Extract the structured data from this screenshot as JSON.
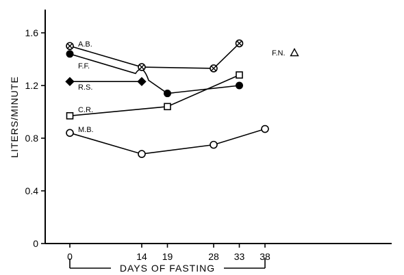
{
  "chart_data": {
    "type": "line",
    "title": "",
    "xlabel": "DAYS OF FASTING",
    "ylabel": "LITERS/MINUTE",
    "x_ticks": [
      0,
      14,
      19,
      28,
      33,
      38
    ],
    "y_ticks": [
      "0",
      "0.4",
      "0.8",
      "1.2",
      "1.6"
    ],
    "ylim": [
      0,
      1.8
    ],
    "grid": false,
    "legend": "none",
    "series": [
      {
        "name": "A.B.",
        "marker": "circle-x",
        "points": [
          [
            0,
            1.5
          ],
          [
            14,
            1.34
          ],
          [
            28,
            1.33
          ],
          [
            33,
            1.52
          ]
        ]
      },
      {
        "name": "F.F.",
        "marker": "filled-circle",
        "points": [
          [
            0,
            1.44
          ],
          [
            14,
            1.25
          ],
          [
            19,
            1.14
          ],
          [
            33,
            1.2
          ]
        ]
      },
      {
        "name": "R.S.",
        "marker": "filled-diamond",
        "points": [
          [
            0,
            1.23
          ],
          [
            14,
            1.23
          ]
        ]
      },
      {
        "name": "C.R.",
        "marker": "open-square",
        "points": [
          [
            0,
            0.97
          ],
          [
            19,
            1.04
          ],
          [
            33,
            1.28
          ]
        ]
      },
      {
        "name": "M.B.",
        "marker": "open-circle",
        "points": [
          [
            0,
            0.84
          ],
          [
            14,
            0.68
          ],
          [
            28,
            0.75
          ],
          [
            38,
            0.87
          ]
        ]
      },
      {
        "name": "F.N.",
        "marker": "open-triangle",
        "points": []
      }
    ]
  }
}
